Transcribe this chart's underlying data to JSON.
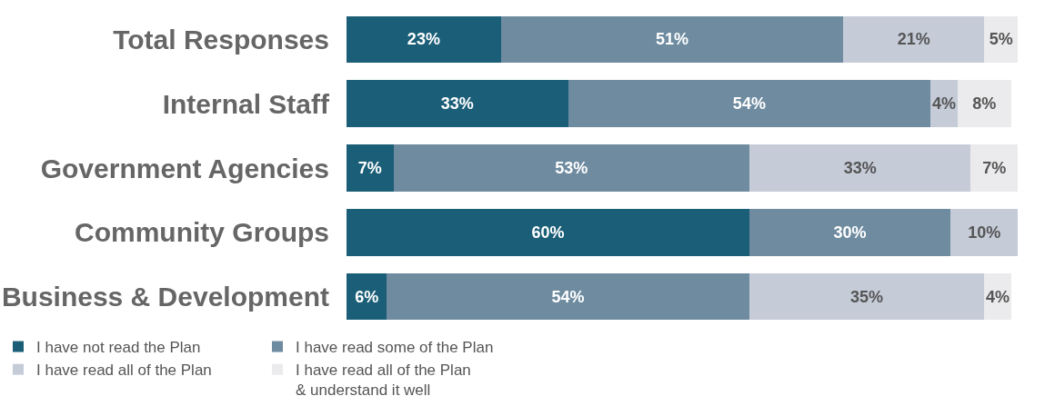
{
  "chart_data": {
    "type": "bar",
    "orientation": "horizontal",
    "stacked": true,
    "categories": [
      "Total Responses",
      "Internal Staff",
      "Government Agencies",
      "Community Groups",
      "Business & Development"
    ],
    "series": [
      {
        "name": "I have not read the Plan",
        "color": "#1b5e77",
        "values": [
          23,
          33,
          7,
          60,
          6
        ],
        "value_labels": [
          "23%",
          "33%",
          "7%",
          "60%",
          "6%"
        ]
      },
      {
        "name": "I have read some of the Plan",
        "color": "#6e8ba0",
        "values": [
          51,
          54,
          53,
          30,
          54
        ],
        "value_labels": [
          "51%",
          "54%",
          "53%",
          "30%",
          "54%"
        ]
      },
      {
        "name": "I have read all of the Plan",
        "color": "#c5ccd8",
        "values": [
          21,
          4,
          33,
          10,
          35
        ],
        "value_labels": [
          "21%",
          "4%",
          "33%",
          "10%",
          "35%"
        ]
      },
      {
        "name": "I have read all of the Plan\n& understand it well",
        "color": "#ebebed",
        "values": [
          5,
          8,
          7,
          null,
          4
        ],
        "value_labels": [
          "5%",
          "8%",
          "7%",
          null,
          "4%"
        ]
      }
    ],
    "tick_labels": "y",
    "legend": "bottom"
  }
}
